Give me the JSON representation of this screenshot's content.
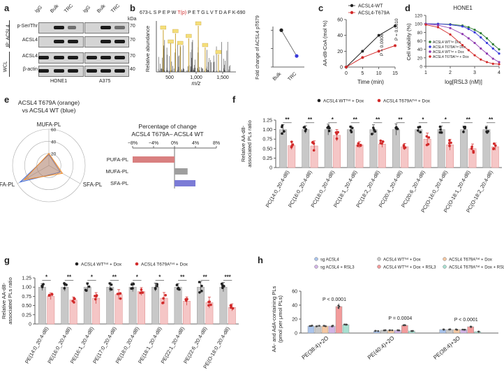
{
  "panels": {
    "a": {
      "label": "a",
      "lanes": [
        "IgG",
        "Bulk",
        "TRC",
        "IgG",
        "Bulk",
        "TRC"
      ],
      "kda": "kDa",
      "group_ip": "IP: ACSL4",
      "group_wcl": "WCL",
      "rows": [
        {
          "name": "p-Ser/Thr",
          "mw": "70"
        },
        {
          "name": "ACSL4",
          "mw": "70"
        },
        {
          "name": "ACSL4",
          "mw": "70"
        },
        {
          "name": "β-actin",
          "mw": "40"
        }
      ],
      "cells": [
        "HONE1",
        "A375"
      ]
    },
    "b": {
      "label": "b",
      "peptide_left": "673-L S P E P W",
      "peptide_mod": "T(p)",
      "peptide_right": "P E T G L V T D A F K-690",
      "ylabel": "Relative abundance",
      "xlabel": "m/z",
      "xticks": [
        "500",
        "1,000",
        "1,500"
      ],
      "fold_ylabel": "Fold change of ACSL4 pT679",
      "fold_x": [
        "Bulk",
        "TRC"
      ],
      "fold_yticks": [
        "0",
        "0.5",
        "1.0"
      ]
    },
    "c": {
      "label": "c",
      "legend": [
        "ACSL4-WT",
        "ACSL4-T679A"
      ],
      "ylabel": "AA-d8-CoA (mol %)",
      "xlabel": "Time (min)",
      "xticks": [
        "0",
        "5",
        "10",
        "15"
      ],
      "yticks": [
        "0",
        "20",
        "40",
        "60"
      ],
      "pvals": [
        "P = 0.0006",
        "P = 0.0010"
      ]
    },
    "d": {
      "label": "d",
      "title": "HONE1",
      "ylabel": "Cell viability (%)",
      "xlabel": "log[RSL3 (nM)]",
      "xticks": [
        "1",
        "2",
        "3",
        "4"
      ],
      "yticks": [
        "0",
        "20",
        "40",
        "60",
        "80",
        "100",
        "120"
      ],
      "legend": [
        "ACSL4 WTᵀᵉᵗ Dox",
        "ACSL4 T679Aᵀᵉᵗ Dox",
        "ACSL4 WTᵀᵉᵗ + Dox",
        "ACSL4 T679Aᵀᵉᵗ + Dox"
      ]
    },
    "e": {
      "label": "e",
      "title1": "ACSL4 T679A (orange)",
      "title2": "vs ACSL4 WT (blue)",
      "radar_axes": [
        "MUFA-PL",
        "SFA-PL",
        "PUFA-PL"
      ],
      "radar_ticks": [
        "20",
        "40",
        "60"
      ],
      "bar_title1": "Percentage of change",
      "bar_title2": "ACSL4 T679A– ACSL4 WT",
      "bar_xticks": [
        "−8%",
        "−4%",
        "0%",
        "4%",
        "8%"
      ],
      "bar_cats": [
        "PUFA-PL",
        "MUFA-PL",
        "SFA-PL"
      ]
    },
    "f": {
      "label": "f",
      "legend": [
        "ACSL4 WTᵀᵉᵗ + Dox",
        "ACSL4 T679Aᵀᵉᵗ + Dox"
      ],
      "ylabel1": "Relative AA-d8-",
      "ylabel2": "associated PLs ratio",
      "yticks": [
        "0",
        "0.25",
        "0.50",
        "0.75",
        "1.00",
        "1.25"
      ]
    },
    "g": {
      "label": "g",
      "legend": [
        "ACSL4 WTᵀᵉᵗ + Dox",
        "ACSL4 T679Aᵀᵉᵗ + Dox"
      ],
      "ylabel1": "Relative AA-d8-",
      "ylabel2": "associated PLs ratio",
      "yticks": [
        "0",
        "0.25",
        "0.50",
        "0.75",
        "1.00",
        "1.25"
      ]
    },
    "h": {
      "label": "h",
      "legend": [
        "sg ACSL4",
        "ACSL4 WTᵀᵉᵗ + Dox",
        "ACSL4 T679Aᵀᵉᵗ + Dox",
        "sg ACSL4 + RSL3",
        "ACSL4 WTᵀᵉᵗ + Dox + RSL3",
        "ACSL4 T679Aᵀᵉᵗ + Dox + RSL3"
      ],
      "ylabel1": "AA- and AdA-containing PLs",
      "ylabel2": "(pmol per μmol PLs)",
      "yticks": [
        "0",
        "20",
        "40",
        "60"
      ],
      "pvals": [
        "P < 0.0001",
        "P = 0.0004",
        "P < 0.0001"
      ]
    }
  },
  "chart_data": [
    {
      "id": "b_fold",
      "type": "line",
      "title": "",
      "x": [
        "Bulk",
        "TRC"
      ],
      "values": [
        1.0,
        0.3
      ],
      "ylim": [
        0,
        1.1
      ],
      "xlabel": "",
      "ylabel": "Fold change of ACSL4 pT679"
    },
    {
      "id": "c",
      "type": "line",
      "xlabel": "Time (min)",
      "ylabel": "AA-d8-CoA (mol %)",
      "xlim": [
        0,
        15
      ],
      "ylim": [
        0,
        60
      ],
      "series": [
        {
          "name": "ACSL4-WT",
          "color": "#222222",
          "x": [
            0,
            5,
            10,
            15
          ],
          "y": [
            0,
            20,
            40,
            52
          ]
        },
        {
          "name": "ACSL4-T679A",
          "color": "#d22b2b",
          "x": [
            0,
            5,
            10,
            15
          ],
          "y": [
            0,
            12,
            20,
            27
          ]
        }
      ]
    },
    {
      "id": "d",
      "type": "line",
      "title": "HONE1",
      "xlabel": "log[RSL3 (nM)]",
      "ylabel": "Cell viability (%)",
      "xlim": [
        1,
        4
      ],
      "ylim": [
        0,
        120
      ],
      "x": [
        1,
        1.5,
        2,
        2.5,
        2.75,
        3,
        3.25,
        3.5,
        3.75,
        4
      ],
      "series": [
        {
          "name": "ACSL4 WT Tet − Dox",
          "color": "#2e7d32",
          "y": [
            100,
            100,
            99,
            96,
            92,
            86,
            78,
            66,
            52,
            40
          ]
        },
        {
          "name": "ACSL4 T679A Tet − Dox",
          "color": "#3a3adb",
          "y": [
            100,
            100,
            98,
            94,
            88,
            80,
            68,
            55,
            42,
            30
          ]
        },
        {
          "name": "ACSL4 WT Tet + Dox",
          "color": "#8e3ab0",
          "y": [
            100,
            97,
            90,
            76,
            66,
            55,
            42,
            30,
            18,
            10
          ]
        },
        {
          "name": "ACSL4 T679A Tet + Dox",
          "color": "#d22b2b",
          "y": [
            98,
            92,
            75,
            50,
            38,
            26,
            16,
            10,
            6,
            5
          ]
        }
      ]
    },
    {
      "id": "e_radar",
      "type": "radar",
      "categories": [
        "MUFA-PL",
        "SFA-PL",
        "PUFA-PL"
      ],
      "rmax": 60,
      "series": [
        {
          "name": "ACSL4 WT",
          "color": "#4a6fd4",
          "values": [
            18,
            22,
            55
          ]
        },
        {
          "name": "ACSL4 T679A",
          "color": "#f28c28",
          "values": [
            20,
            26,
            47
          ]
        }
      ]
    },
    {
      "id": "e_bar",
      "type": "bar",
      "title": "Percentage of change",
      "categories": [
        "PUFA-PL",
        "MUFA-PL",
        "SFA-PL"
      ],
      "values": [
        -8,
        2.5,
        4
      ],
      "colors": [
        "#d98080",
        "#9e9e9e",
        "#7b7bd6"
      ],
      "xlim": [
        -8,
        8
      ]
    },
    {
      "id": "f",
      "type": "bar",
      "ylabel": "Relative AA-d8-associated PLs ratio",
      "ylim": [
        0,
        1.25
      ],
      "categories": [
        "PC(14:0_20:4-d8)",
        "PC(16:0_20:4-d8)",
        "PC(18:0_20:4-d8)",
        "PC(18:1_20:4-d8)",
        "PC(18:2_20:4-d8)",
        "PC(20:4_20:4-d8)",
        "PC(20:6_20:4-d8)",
        "PC(O-16:0_20:4-d8)",
        "PC(O-18:1_20:4-d8)",
        "PC(O-18:2_20:4-d8)"
      ],
      "series": [
        {
          "name": "ACSL4 WT Tet + Dox",
          "color": "#c8c8c8",
          "values": [
            1,
            1,
            1,
            1,
            1,
            1,
            1,
            1,
            1,
            1
          ]
        },
        {
          "name": "ACSL4 T679A Tet + Dox",
          "color": "#f5c6c6",
          "values": [
            0.58,
            0.57,
            0.85,
            0.6,
            0.62,
            0.55,
            0.75,
            0.6,
            0.5,
            0.55
          ]
        }
      ],
      "significance": [
        "**",
        "**",
        "*",
        "**",
        "**",
        "**",
        "*",
        "*",
        "**",
        "**"
      ]
    },
    {
      "id": "g",
      "type": "bar",
      "ylabel": "Relative AA-d8-associated PLs ratio",
      "ylim": [
        0,
        1.25
      ],
      "categories": [
        "PE(14:0_20:4-d8)",
        "PE(16:0_20:4-d8)",
        "PE(16:1_20:4-d8)",
        "PE(17:0_20:4-d8)",
        "PE(18:0_20:4-d8)",
        "PE(18:1_20:4-d8)",
        "PE(22:1_20:4-d8)",
        "PE(22:6_20:4-d8)",
        "PE(O-18:0_20:4-d8)"
      ],
      "series": [
        {
          "name": "ACSL4 WT Tet + Dox",
          "color": "#c8c8c8",
          "values": [
            1,
            1,
            1,
            1,
            1,
            1,
            1,
            1,
            1
          ]
        },
        {
          "name": "ACSL4 T679A Tet + Dox",
          "color": "#f5c6c6",
          "values": [
            0.75,
            0.65,
            0.7,
            0.8,
            0.88,
            0.7,
            0.62,
            0.58,
            0.45
          ]
        }
      ],
      "significance": [
        "*",
        "**",
        "*",
        "**",
        "*",
        "*",
        "**",
        "**",
        "***"
      ]
    },
    {
      "id": "h",
      "type": "bar",
      "ylabel": "AA- and AdA-containing PLs (pmol per μmol PLs)",
      "ylim": [
        0,
        60
      ],
      "categories": [
        "PE(38:4)+2O",
        "PE(40:4)+2O",
        "PE(38:4)+3O"
      ],
      "series": [
        {
          "name": "sg ACSL4",
          "color": "#aac4ec",
          "values": [
            10,
            3,
            5
          ]
        },
        {
          "name": "ACSL4 WT Tet + Dox",
          "color": "#c8c8c8",
          "values": [
            10,
            4,
            5
          ]
        },
        {
          "name": "ACSL4 T679A Tet + Dox",
          "color": "#f4c7a2",
          "values": [
            10,
            4,
            5
          ]
        },
        {
          "name": "sg ACSL4 + RSL3",
          "color": "#d2b4e6",
          "values": [
            10,
            4,
            5
          ]
        },
        {
          "name": "ACSL4 WT Tet + Dox + RSL3",
          "color": "#f29b9b",
          "values": [
            38,
            11,
            9
          ]
        },
        {
          "name": "ACSL4 T679A Tet + Dox + RSL3",
          "color": "#a8e0d1",
          "values": [
            12,
            3,
            2
          ]
        }
      ]
    }
  ]
}
